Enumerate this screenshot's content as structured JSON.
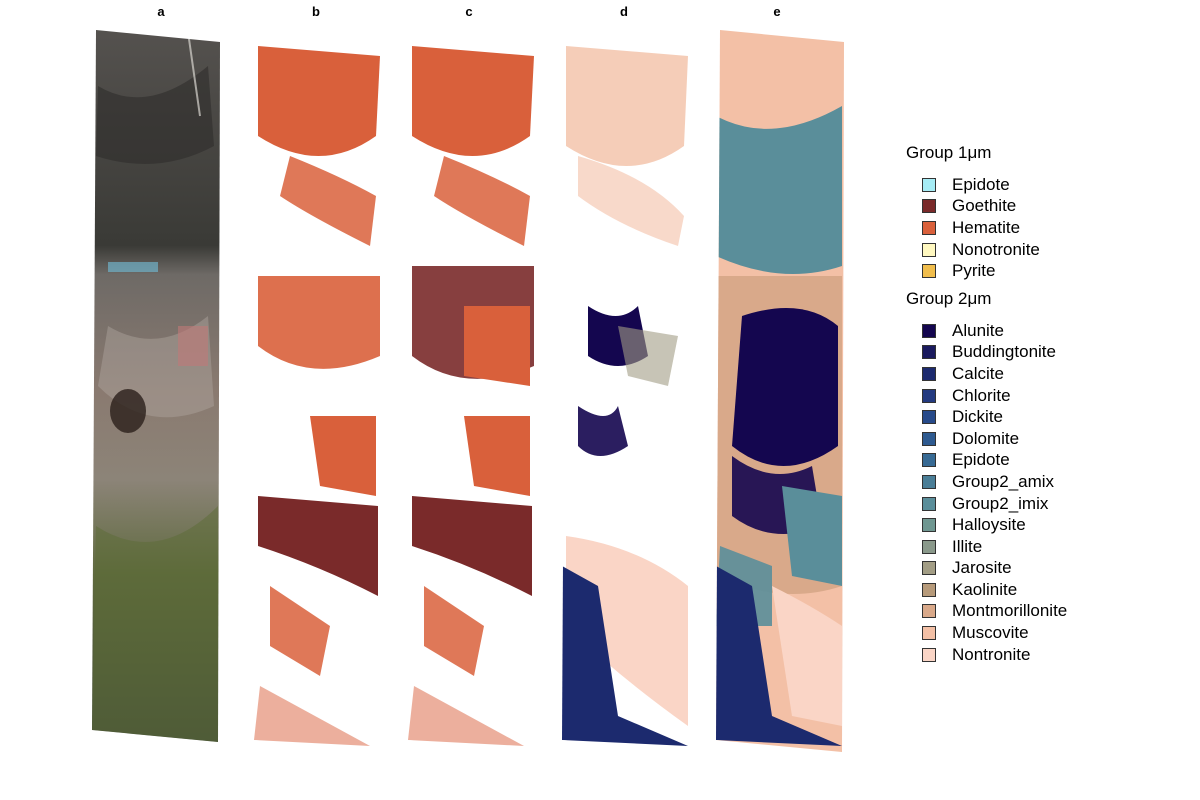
{
  "panels": [
    {
      "label": "a",
      "kind": "true-color"
    },
    {
      "label": "b",
      "kind": "group1-classified"
    },
    {
      "label": "c",
      "kind": "group1-classified"
    },
    {
      "label": "d",
      "kind": "group2-classified"
    },
    {
      "label": "e",
      "kind": "group2-classified"
    }
  ],
  "legend": {
    "group1": {
      "title_prefix": "Group 1",
      "title_unit": "μm",
      "items": [
        {
          "label": "Epidote",
          "color": "#a6ecf5"
        },
        {
          "label": "Goethite",
          "color": "#7a2a2a"
        },
        {
          "label": "Hematite",
          "color": "#d9603b"
        },
        {
          "label": "Nonotronite",
          "color": "#fff8c0"
        },
        {
          "label": "Pyrite",
          "color": "#f0bd4c"
        }
      ]
    },
    "group2": {
      "title_prefix": "Group 2",
      "title_unit": "μm",
      "items": [
        {
          "label": "Alunite",
          "color": "#14064f"
        },
        {
          "label": "Buddingtonite",
          "color": "#1a1a5e"
        },
        {
          "label": "Calcite",
          "color": "#1c2a6e"
        },
        {
          "label": "Chlorite",
          "color": "#233a80"
        },
        {
          "label": "Dickite",
          "color": "#274a8a"
        },
        {
          "label": "Dolomite",
          "color": "#2e5a90"
        },
        {
          "label": "Epidote",
          "color": "#376a94"
        },
        {
          "label": "Group2_amix",
          "color": "#4a7e97"
        },
        {
          "label": "Group2_imix",
          "color": "#5a8e9a"
        },
        {
          "label": "Halloysite",
          "color": "#6f9791"
        },
        {
          "label": "Illite",
          "color": "#8a998b"
        },
        {
          "label": "Jarosite",
          "color": "#a29d85"
        },
        {
          "label": "Kaolinite",
          "color": "#b69a7a"
        },
        {
          "label": "Montmorillonite",
          "color": "#d9a98a"
        },
        {
          "label": "Muscovite",
          "color": "#f3c0a6"
        },
        {
          "label": "Nontronite",
          "color": "#fad5c6"
        }
      ]
    }
  }
}
